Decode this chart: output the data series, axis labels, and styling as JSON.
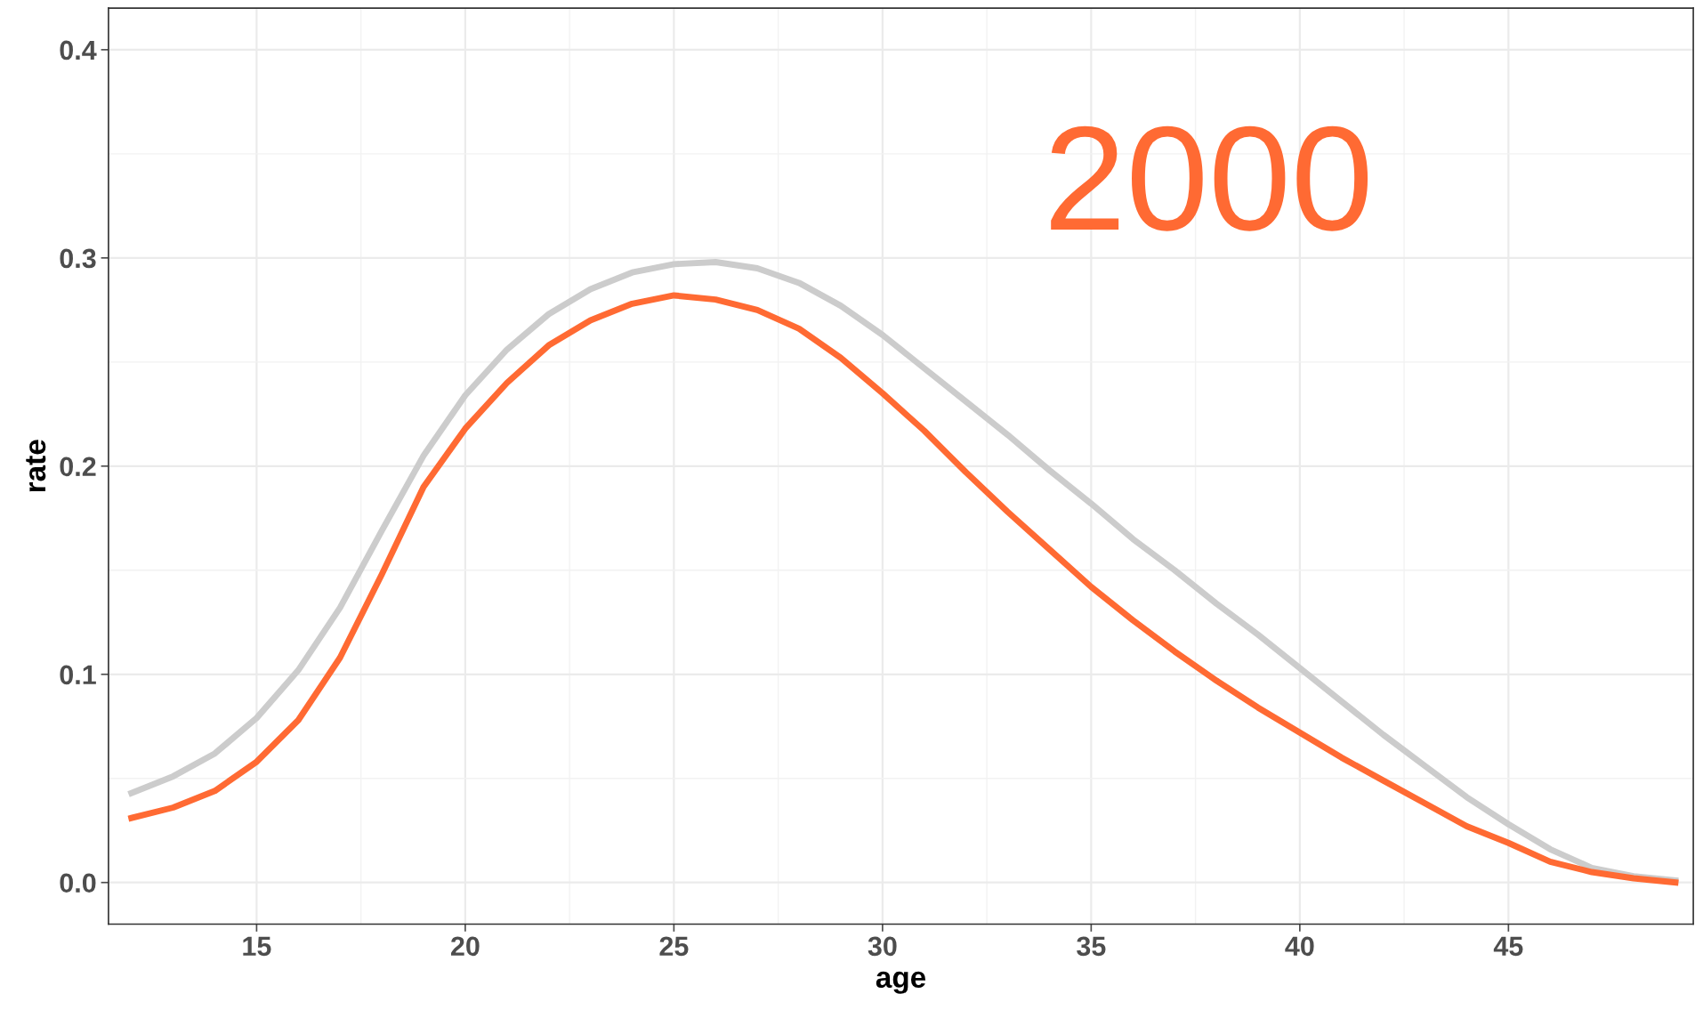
{
  "chart_data": {
    "type": "line",
    "xlabel": "age",
    "ylabel": "rate",
    "annotations": [
      "2000"
    ],
    "x": [
      12,
      13,
      14,
      15,
      16,
      17,
      18,
      19,
      20,
      21,
      22,
      23,
      24,
      25,
      26,
      27,
      28,
      29,
      30,
      31,
      32,
      33,
      34,
      35,
      36,
      37,
      38,
      39,
      40,
      41,
      42,
      43,
      44,
      45,
      46,
      47,
      48,
      49
    ],
    "series": [
      {
        "color": "#cccccc",
        "values": [
          0.043,
          0.051,
          0.062,
          0.079,
          0.102,
          0.132,
          0.169,
          0.205,
          0.234,
          0.256,
          0.273,
          0.285,
          0.293,
          0.297,
          0.298,
          0.295,
          0.288,
          0.277,
          0.263,
          0.247,
          0.231,
          0.215,
          0.198,
          0.182,
          0.165,
          0.15,
          0.134,
          0.119,
          0.103,
          0.087,
          0.071,
          0.056,
          0.041,
          0.028,
          0.016,
          0.007,
          0.003,
          0.001
        ]
      },
      {
        "color": "#ff6a33",
        "values": [
          0.031,
          0.036,
          0.044,
          0.058,
          0.078,
          0.108,
          0.148,
          0.19,
          0.218,
          0.24,
          0.258,
          0.27,
          0.278,
          0.282,
          0.28,
          0.275,
          0.266,
          0.252,
          0.235,
          0.217,
          0.197,
          0.178,
          0.16,
          0.142,
          0.126,
          0.111,
          0.097,
          0.084,
          0.072,
          0.06,
          0.049,
          0.038,
          0.027,
          0.019,
          0.01,
          0.005,
          0.002,
          0.0
        ]
      }
    ],
    "xlim": [
      11.45,
      49.43
    ],
    "ylim": [
      -0.02,
      0.42
    ],
    "xticks": [
      15,
      20,
      25,
      30,
      35,
      40,
      45
    ],
    "yticks": [
      {
        "value": 0,
        "label": "0.0"
      },
      0.1,
      0.2,
      0.3,
      0.4
    ],
    "grid": true,
    "line_style": "solid",
    "marker": "none",
    "legend": false
  }
}
